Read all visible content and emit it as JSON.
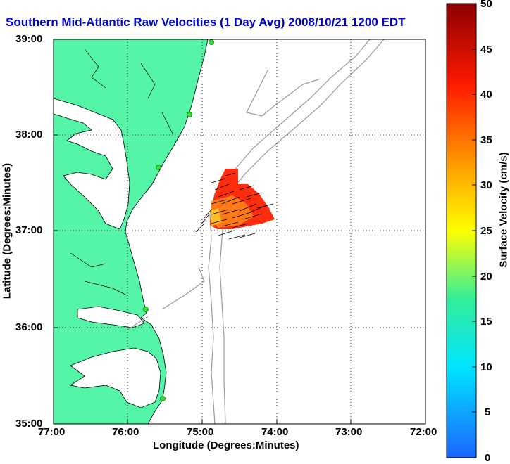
{
  "title": "Southern Mid-Atlantic Raw Velocities (1 Day Avg) 2008/10/21 1200 EDT",
  "x_axis": {
    "label": "Longitude (Degrees:Minutes)",
    "ticks": [
      "77:00",
      "76:00",
      "75:00",
      "74:00",
      "73:00",
      "72:00"
    ]
  },
  "y_axis": {
    "label": "Latitude (Degrees:Minutes)",
    "ticks": [
      "39:00",
      "38:00",
      "37:00",
      "36:00",
      "35:00"
    ]
  },
  "colorbar": {
    "label": "Surface Velocity (cm/s)",
    "ticks": [
      "50",
      "45",
      "40",
      "35",
      "30",
      "25",
      "20",
      "15",
      "10",
      "5",
      "0"
    ]
  },
  "colors": {
    "land": "#55f5a8",
    "water": "#ffffff",
    "bathymetry": "#999999",
    "title": "#0000cc",
    "station": "#33dd33"
  }
}
